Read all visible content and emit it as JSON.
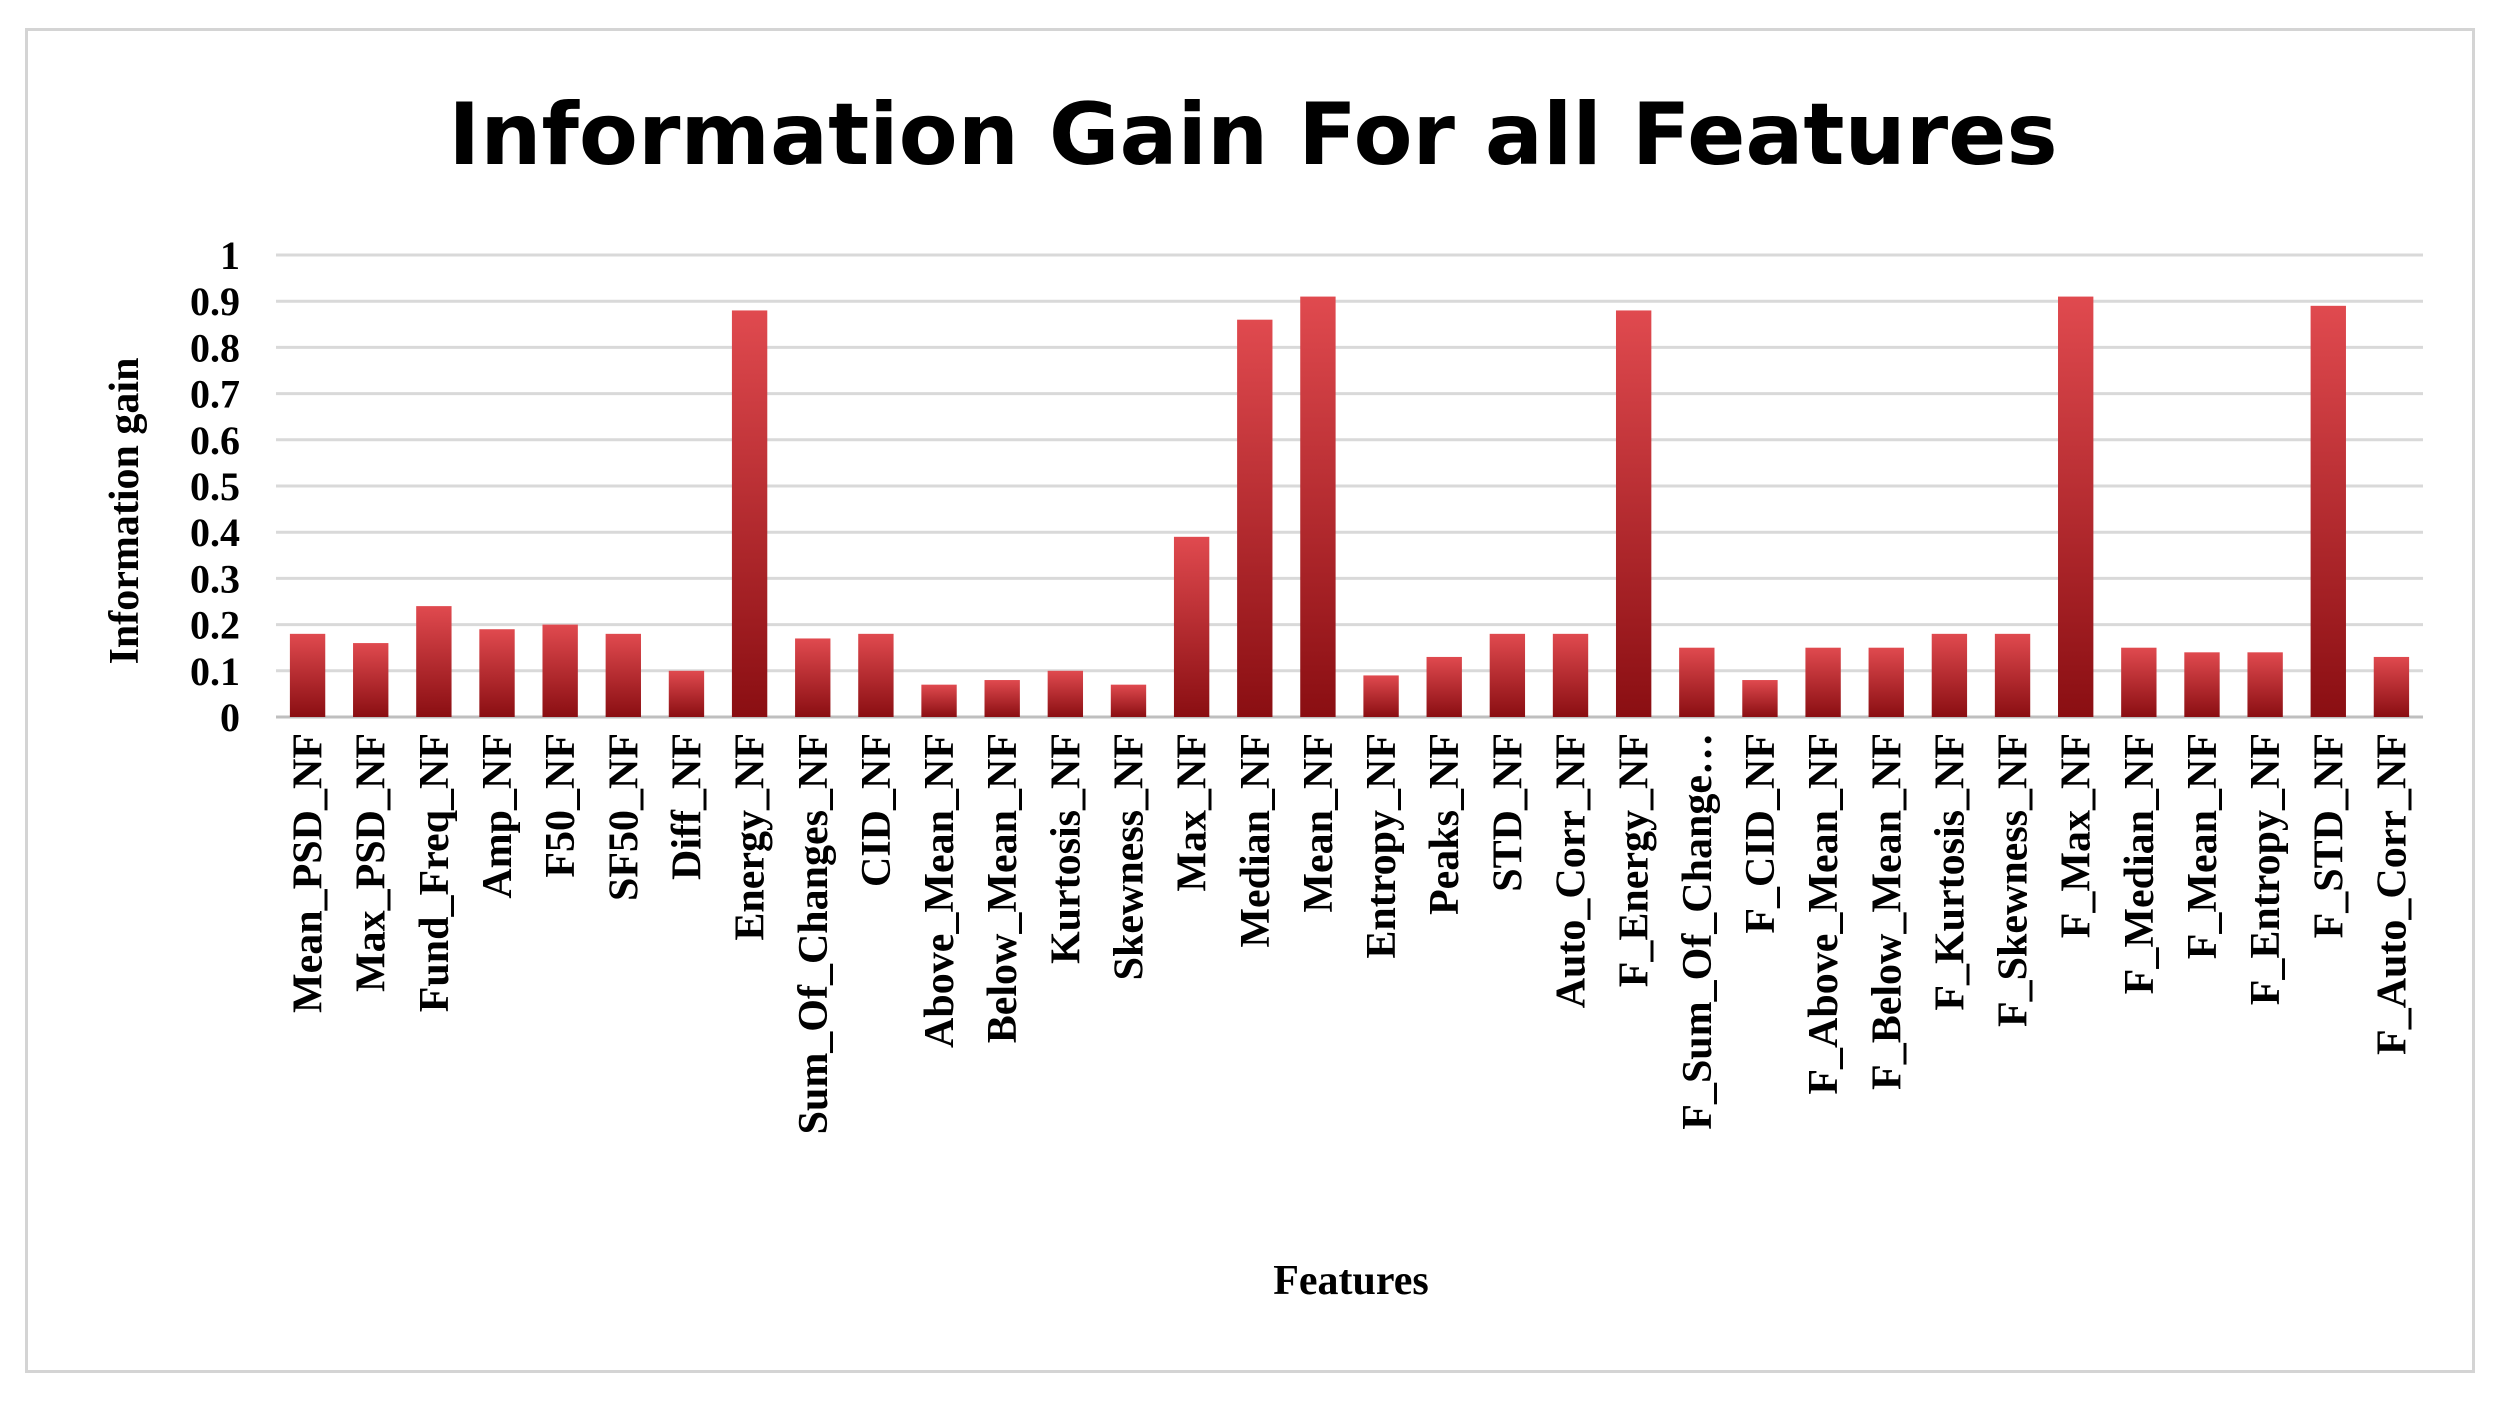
{
  "chart_data": {
    "type": "bar",
    "title": "Information Gain For all Features",
    "xlabel": "Features",
    "ylabel": "Information gain",
    "ylim": [
      0,
      1
    ],
    "yticks": [
      "0",
      "0.1",
      "0.2",
      "0.3",
      "0.4",
      "0.5",
      "0.6",
      "0.7",
      "0.8",
      "0.9",
      "1"
    ],
    "grid": true,
    "legend": "none",
    "categories": [
      "Mean_PSD_NF",
      "Max_PSD_NF",
      "Fund_Freq_NF",
      "Amp_NF",
      "F50_NF",
      "SF50_NF",
      "Diff_NF",
      "Energy_NF",
      "Sum_Of_Changes_NF",
      "CID_NF",
      "Above_Mean_NF",
      "Below_Mean_NF",
      "Kurtosis_NF",
      "Skewness_NF",
      "Max_NF",
      "Median_NF",
      "Mean_NF",
      "Entropy_NF",
      "Peaks_NF",
      "STD_NF",
      "Auto_Corr_NF",
      "F_Energy_NF",
      "F_Sum_Of_Change…",
      "F_CID_NF",
      "F_Above_Mean_NF",
      "F_Below_Mean_NF",
      "F_Kurtosis_NF",
      "F_Skewness_NF",
      "F_Max_NF",
      "F_Median_NF",
      "F_Mean_NF",
      "F_Entropy_NF",
      "F_STD_NF",
      "F_Auto_Corr_NF"
    ],
    "values": [
      0.18,
      0.16,
      0.24,
      0.19,
      0.2,
      0.18,
      0.1,
      0.88,
      0.17,
      0.18,
      0.07,
      0.08,
      0.1,
      0.07,
      0.39,
      0.86,
      0.91,
      0.09,
      0.13,
      0.18,
      0.18,
      0.88,
      0.15,
      0.08,
      0.15,
      0.15,
      0.18,
      0.18,
      0.91,
      0.15,
      0.14,
      0.14,
      0.89,
      0.13
    ],
    "colors": {
      "bar_top": "#e04a4f",
      "bar_bottom": "#8a0e12"
    }
  }
}
